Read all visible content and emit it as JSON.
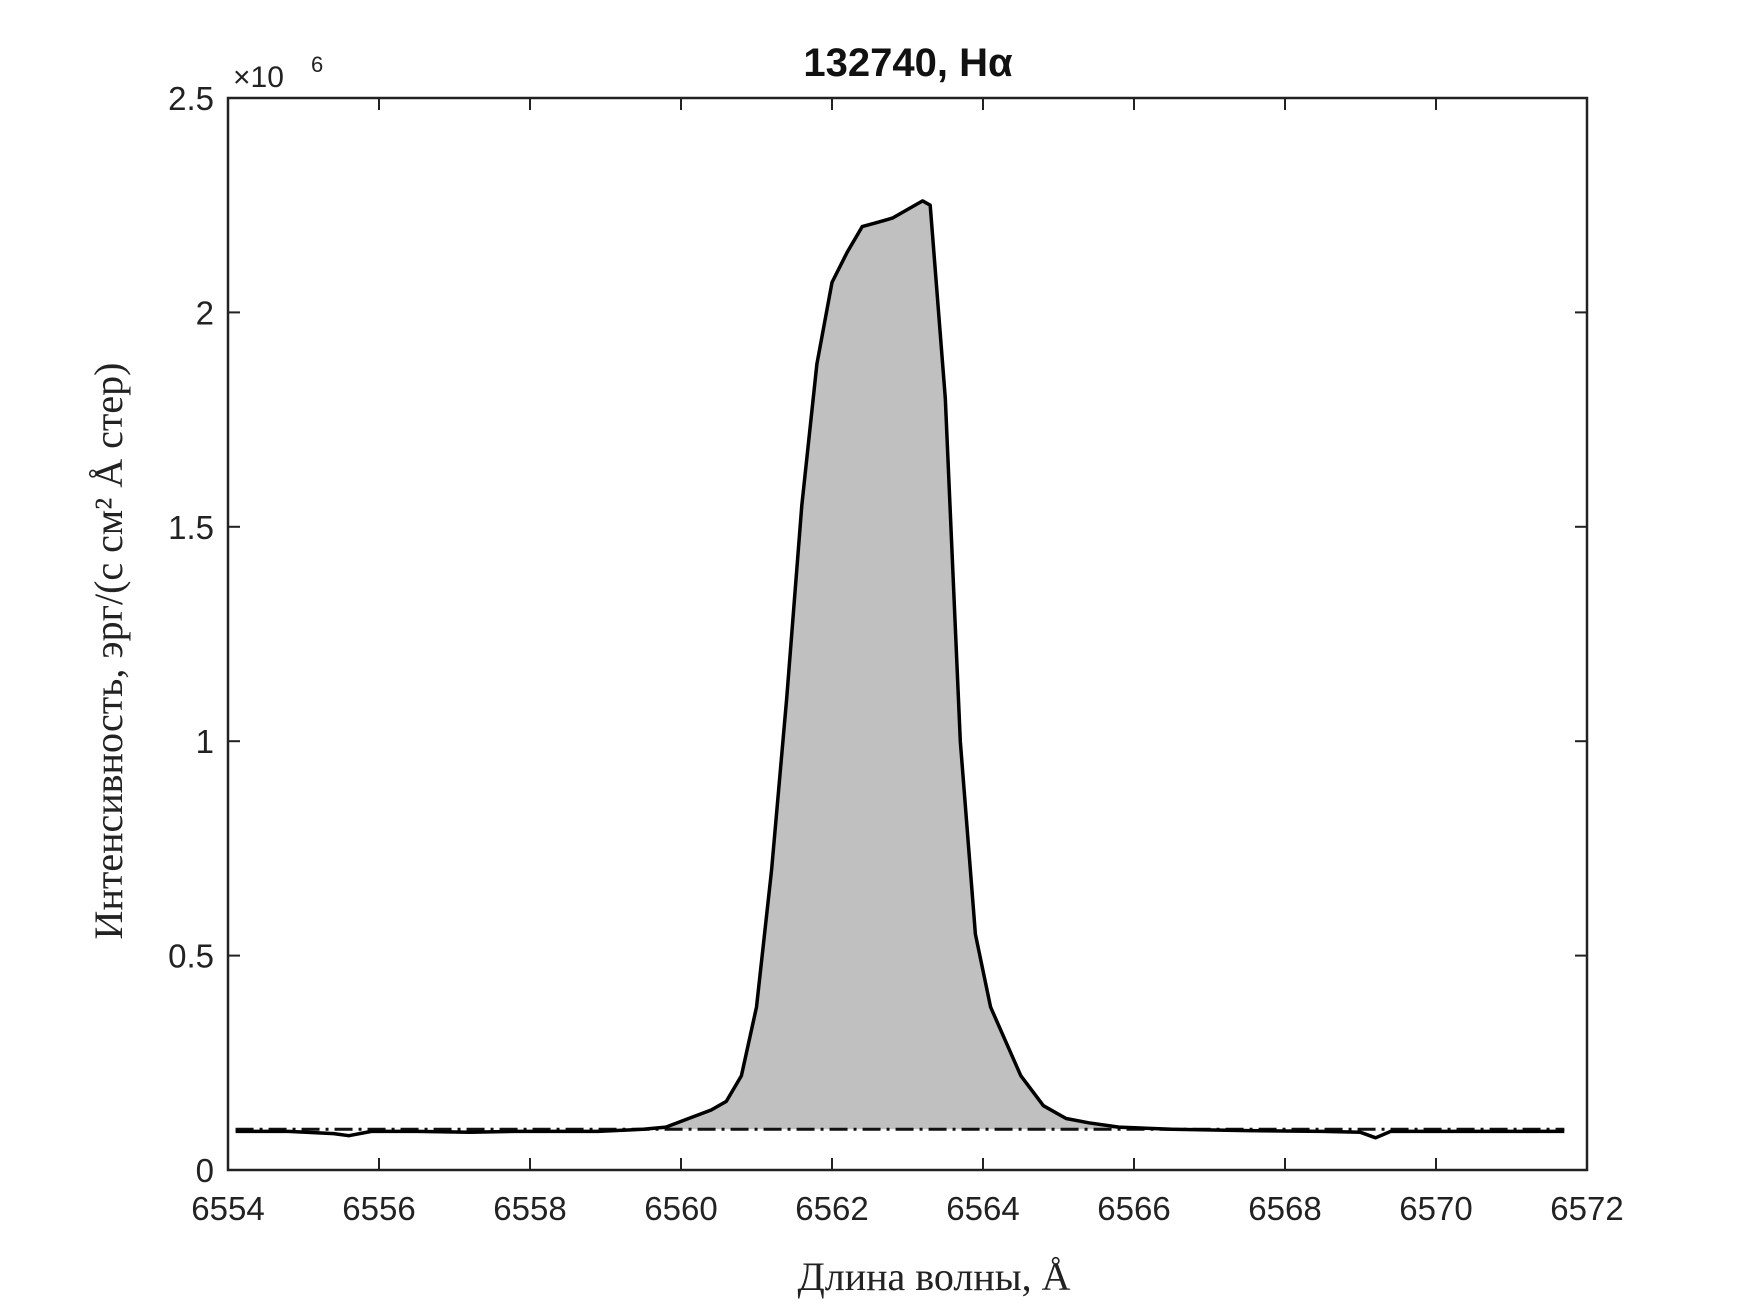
{
  "chart_data": {
    "type": "area",
    "title": "132740, Hα",
    "xlabel": "Длина волны, Å",
    "ylabel": "Интенсивность, эрг/(с см² Å стер)",
    "y_multiplier_label": "×10",
    "y_multiplier_exponent": "6",
    "xlim": [
      6554,
      6572
    ],
    "ylim": [
      0,
      2.5
    ],
    "x_ticks": [
      "6554",
      "6556",
      "6558",
      "6560",
      "6562",
      "6564",
      "6566",
      "6568",
      "6570",
      "6572"
    ],
    "y_ticks": [
      "0",
      "0.5",
      "1",
      "1.5",
      "2",
      "2.5"
    ],
    "grid": false,
    "fill_color": "#c0c0c0",
    "line_color": "#000000",
    "series": [
      {
        "style": "solid",
        "x": [
          6554.1,
          6554.8,
          6555.4,
          6555.6,
          6555.9,
          6556.5,
          6557.2,
          6557.8,
          6558.3,
          6558.9,
          6559.5,
          6559.8,
          6560.1,
          6560.4,
          6560.6,
          6560.8,
          6561.0,
          6561.2,
          6561.4,
          6561.6,
          6561.8,
          6562.0,
          6562.2,
          6562.4,
          6562.6,
          6562.8,
          6563.0,
          6563.2,
          6563.3,
          6563.5,
          6563.7,
          6563.9,
          6564.1,
          6564.3,
          6564.5,
          6564.8,
          6565.1,
          6565.4,
          6565.8,
          6566.5,
          6567.5,
          6568.5,
          6569.0,
          6569.2,
          6569.4,
          6570.0,
          6571.0,
          6571.7
        ],
        "y": [
          0.09,
          0.09,
          0.085,
          0.08,
          0.09,
          0.09,
          0.088,
          0.09,
          0.09,
          0.09,
          0.095,
          0.1,
          0.12,
          0.14,
          0.16,
          0.22,
          0.38,
          0.7,
          1.1,
          1.55,
          1.88,
          2.07,
          2.14,
          2.2,
          2.21,
          2.22,
          2.24,
          2.26,
          2.25,
          1.8,
          1.0,
          0.55,
          0.38,
          0.3,
          0.22,
          0.15,
          0.12,
          0.11,
          0.1,
          0.095,
          0.092,
          0.09,
          0.088,
          0.075,
          0.09,
          0.09,
          0.09,
          0.09
        ]
      },
      {
        "style": "dash-dot",
        "x": [
          6554.1,
          6571.7
        ],
        "y": [
          0.095,
          0.095
        ]
      }
    ]
  }
}
